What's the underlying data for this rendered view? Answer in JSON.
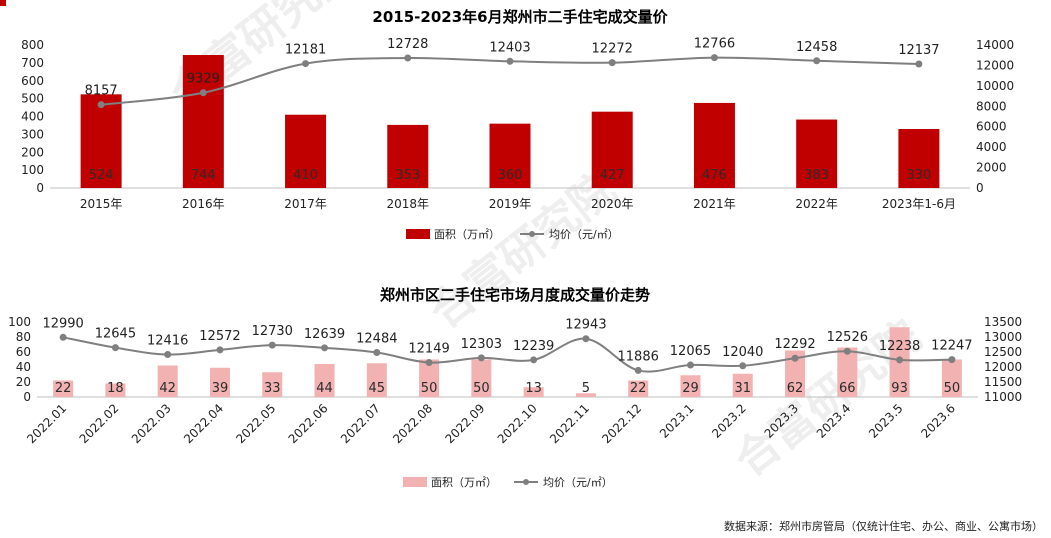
{
  "colors": {
    "bar_top": "#c00000",
    "bar_bottom": "#f2b2b2",
    "line": "#7f7f7f",
    "axis_text": "#222222",
    "accent": "#c00000"
  },
  "watermark": "合富研究院",
  "footer": {
    "source": "数据来源：郑州市房管局（仅统计住宅、办公、商业、公寓市场）"
  },
  "chart_data": [
    {
      "type": "bar+line",
      "title": "2015-2023年6月郑州市二手住宅成交量价",
      "categories": [
        "2015年",
        "2016年",
        "2017年",
        "2018年",
        "2019年",
        "2020年",
        "2021年",
        "2022年",
        "2023年1-6月"
      ],
      "series": [
        {
          "name": "面积（万㎡）",
          "kind": "bar",
          "axis": "left",
          "values": [
            524,
            744,
            410,
            353,
            360,
            427,
            476,
            383,
            330
          ]
        },
        {
          "name": "均价（元/㎡）",
          "kind": "line",
          "axis": "right",
          "values": [
            8157,
            9329,
            12181,
            12728,
            12403,
            12272,
            12766,
            12458,
            12137
          ]
        }
      ],
      "y_left": {
        "min": 0,
        "max": 800,
        "ticks": [
          0,
          100,
          200,
          300,
          400,
          500,
          600,
          700,
          800
        ]
      },
      "y_right": {
        "min": 0,
        "max": 14000,
        "ticks": [
          0,
          2000,
          4000,
          6000,
          8000,
          10000,
          12000,
          14000
        ]
      },
      "legend_position": "bottom-center",
      "grid": false
    },
    {
      "type": "bar+line",
      "title": "郑州市区二手住宅市场月度成交量价走势",
      "categories": [
        "2022.01",
        "2022.02",
        "2022.03",
        "2022.04",
        "2022.05",
        "2022.06",
        "2022.07",
        "2022.08",
        "2022.09",
        "2022.10",
        "2022.11",
        "2022.12",
        "2023.1",
        "2023.2",
        "2023.3",
        "2023.4",
        "2023.5",
        "2023.6"
      ],
      "series": [
        {
          "name": "面积（万㎡）",
          "kind": "bar",
          "axis": "left",
          "values": [
            22,
            18,
            42,
            39,
            33,
            44,
            45,
            50,
            50,
            13,
            5,
            22,
            29,
            31,
            62,
            66,
            93,
            50
          ]
        },
        {
          "name": "均价（元/㎡）",
          "kind": "line",
          "axis": "right",
          "values": [
            12990,
            12645,
            12416,
            12572,
            12730,
            12639,
            12484,
            12149,
            12303,
            12239,
            12943,
            11886,
            12065,
            12040,
            12292,
            12526,
            12238,
            12247
          ]
        }
      ],
      "y_left": {
        "min": 0,
        "max": 100,
        "ticks": [
          0,
          20,
          40,
          60,
          80,
          100
        ]
      },
      "y_right": {
        "min": 11000,
        "max": 13500,
        "ticks": [
          11000,
          11500,
          12000,
          12500,
          13000,
          13500
        ]
      },
      "legend_position": "bottom-center",
      "grid": false
    }
  ]
}
